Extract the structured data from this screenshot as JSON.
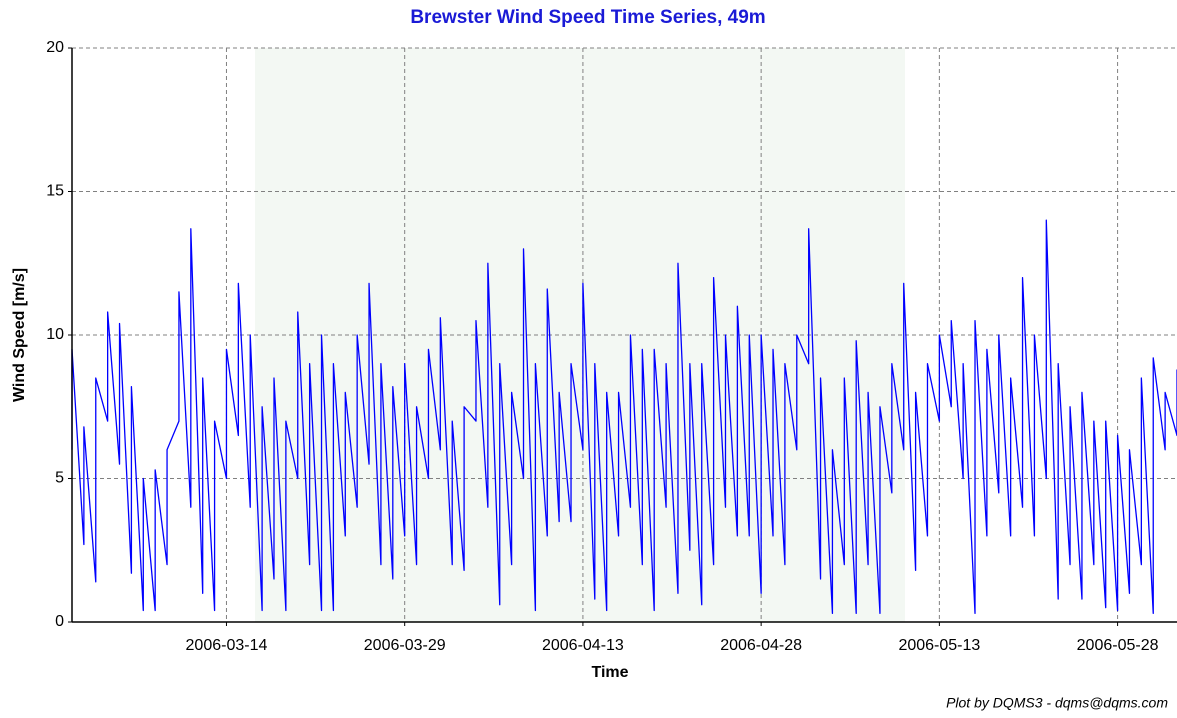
{
  "chart_data": {
    "type": "line",
    "title": "Brewster Wind Speed Time Series, 49m",
    "x_label": "Time",
    "y_label": "Wind Speed [m/s]",
    "footer": "Plot by DQMS3 - dqms@dqms.com",
    "color": "#0000ff",
    "grid": true,
    "xlim": [
      "2006-03-01",
      "2006-06-02"
    ],
    "xticks": [
      "2006-03-14",
      "2006-03-29",
      "2006-04-13",
      "2006-04-28",
      "2006-05-13",
      "2006-05-28"
    ],
    "ylim": [
      0,
      20
    ],
    "yticks": [
      0,
      5,
      10,
      15,
      20
    ],
    "x": [
      "2006-03-01",
      "2006-03-01",
      "2006-03-02",
      "2006-03-02",
      "2006-03-03",
      "2006-03-03",
      "2006-03-04",
      "2006-03-04",
      "2006-03-05",
      "2006-03-05",
      "2006-03-06",
      "2006-03-06",
      "2006-03-07",
      "2006-03-07",
      "2006-03-08",
      "2006-03-08",
      "2006-03-09",
      "2006-03-09",
      "2006-03-10",
      "2006-03-10",
      "2006-03-11",
      "2006-03-11",
      "2006-03-12",
      "2006-03-12",
      "2006-03-13",
      "2006-03-13",
      "2006-03-14",
      "2006-03-14",
      "2006-03-15",
      "2006-03-15",
      "2006-03-16",
      "2006-03-16",
      "2006-03-17",
      "2006-03-17",
      "2006-03-18",
      "2006-03-18",
      "2006-03-19",
      "2006-03-19",
      "2006-03-20",
      "2006-03-20",
      "2006-03-21",
      "2006-03-21",
      "2006-03-22",
      "2006-03-22",
      "2006-03-23",
      "2006-03-23",
      "2006-03-24",
      "2006-03-24",
      "2006-03-25",
      "2006-03-25",
      "2006-03-26",
      "2006-03-26",
      "2006-03-27",
      "2006-03-27",
      "2006-03-28",
      "2006-03-28",
      "2006-03-29",
      "2006-03-29",
      "2006-03-30",
      "2006-03-30",
      "2006-03-31",
      "2006-03-31",
      "2006-04-01",
      "2006-04-01",
      "2006-04-02",
      "2006-04-02",
      "2006-04-03",
      "2006-04-03",
      "2006-04-04",
      "2006-04-04",
      "2006-04-05",
      "2006-04-05",
      "2006-04-06",
      "2006-04-06",
      "2006-04-07",
      "2006-04-07",
      "2006-04-08",
      "2006-04-08",
      "2006-04-09",
      "2006-04-09",
      "2006-04-10",
      "2006-04-10",
      "2006-04-11",
      "2006-04-11",
      "2006-04-12",
      "2006-04-12",
      "2006-04-13",
      "2006-04-13",
      "2006-04-14",
      "2006-04-14",
      "2006-04-15",
      "2006-04-15",
      "2006-04-16",
      "2006-04-16",
      "2006-04-17",
      "2006-04-17",
      "2006-04-18",
      "2006-04-18",
      "2006-04-19",
      "2006-04-19",
      "2006-04-20",
      "2006-04-20",
      "2006-04-21",
      "2006-04-21",
      "2006-04-22",
      "2006-04-22",
      "2006-04-23",
      "2006-04-23",
      "2006-04-24",
      "2006-04-24",
      "2006-04-25",
      "2006-04-25",
      "2006-04-26",
      "2006-04-26",
      "2006-04-27",
      "2006-04-27",
      "2006-04-28",
      "2006-04-28",
      "2006-04-29",
      "2006-04-29",
      "2006-04-30",
      "2006-04-30",
      "2006-05-01",
      "2006-05-01",
      "2006-05-02",
      "2006-05-02",
      "2006-05-03",
      "2006-05-03",
      "2006-05-04",
      "2006-05-04",
      "2006-05-05",
      "2006-05-05",
      "2006-05-06",
      "2006-05-06",
      "2006-05-07",
      "2006-05-07",
      "2006-05-08",
      "2006-05-08",
      "2006-05-09",
      "2006-05-09",
      "2006-05-10",
      "2006-05-10",
      "2006-05-11",
      "2006-05-11",
      "2006-05-12",
      "2006-05-12",
      "2006-05-13",
      "2006-05-13",
      "2006-05-14",
      "2006-05-14",
      "2006-05-15",
      "2006-05-15",
      "2006-05-16",
      "2006-05-16",
      "2006-05-17",
      "2006-05-17",
      "2006-05-18",
      "2006-05-18",
      "2006-05-19",
      "2006-05-19",
      "2006-05-20",
      "2006-05-20",
      "2006-05-21",
      "2006-05-21",
      "2006-05-22",
      "2006-05-22",
      "2006-05-23",
      "2006-05-23",
      "2006-05-24",
      "2006-05-24",
      "2006-05-25",
      "2006-05-25",
      "2006-05-26",
      "2006-05-26",
      "2006-05-27",
      "2006-05-27",
      "2006-05-28",
      "2006-05-28",
      "2006-05-29",
      "2006-05-29",
      "2006-05-30",
      "2006-05-30",
      "2006-05-31",
      "2006-05-31",
      "2006-06-01",
      "2006-06-01",
      "2006-06-02",
      "2006-06-02"
    ],
    "values": [
      6,
      9.5,
      2.7,
      6.8,
      1.4,
      8.5,
      7,
      10.8,
      5.5,
      10.4,
      1.7,
      8.2,
      0.4,
      5,
      0.4,
      5.3,
      2,
      6,
      7,
      11.5,
      4,
      13.7,
      1,
      8.5,
      0.4,
      7,
      5,
      9.5,
      6.5,
      11.8,
      4,
      10,
      0.4,
      7.5,
      1.5,
      8.5,
      0.4,
      7,
      5,
      10.8,
      2,
      9,
      0.4,
      10,
      0.4,
      9,
      3,
      8,
      4,
      10,
      5.5,
      11.8,
      2,
      9,
      1.5,
      8.2,
      3,
      9,
      2,
      7.5,
      5,
      9.5,
      6,
      10.6,
      2,
      7,
      1.8,
      7.5,
      7,
      10.5,
      4,
      12.5,
      0.6,
      9,
      2,
      8,
      5,
      13,
      0.4,
      9,
      3,
      11.6,
      3.5,
      8,
      3.5,
      9,
      6,
      11.8,
      0.8,
      9,
      0.4,
      8,
      3,
      8,
      4,
      10,
      2,
      9.5,
      0.4,
      9.5,
      4,
      9,
      1,
      12.5,
      2.5,
      9,
      0.6,
      9,
      2,
      12,
      4,
      10,
      3,
      11,
      3,
      10,
      1,
      10,
      3,
      9.5,
      2,
      9,
      6,
      10,
      9,
      13.7,
      1.5,
      8.5,
      0.3,
      6,
      2,
      8.5,
      0.3,
      9.8,
      2,
      8,
      0.3,
      7.5,
      4.5,
      9,
      6,
      11.8,
      1.8,
      8,
      3,
      9,
      7,
      10,
      7.5,
      10.5,
      5,
      9,
      0.3,
      10.5,
      3,
      9.5,
      4.5,
      10,
      3,
      8.5,
      4,
      12,
      3,
      10,
      5,
      14,
      0.8,
      9,
      2,
      7.5,
      0.8,
      8,
      2,
      7,
      0.5,
      7,
      0.4,
      6.5,
      1,
      6,
      2,
      8.5,
      0.3,
      9.2,
      6,
      8,
      6.5,
      8.8
    ]
  }
}
